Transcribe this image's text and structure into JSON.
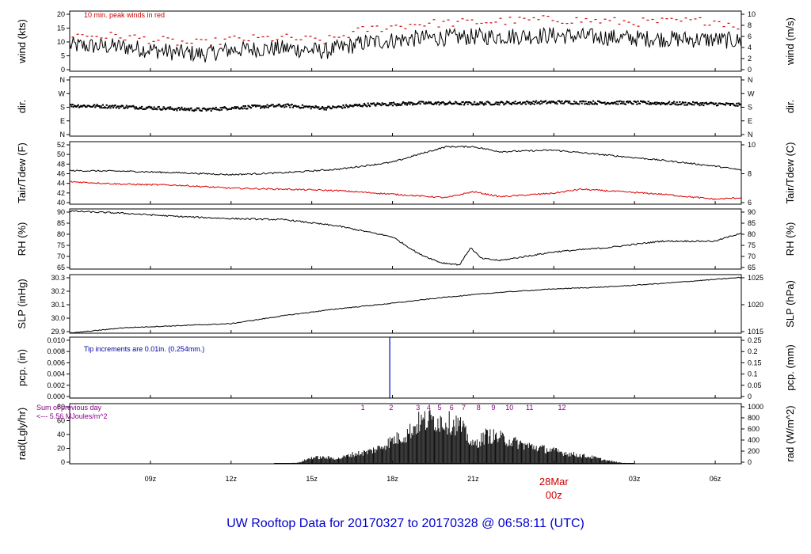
{
  "title": "UW Rooftop Data for 20170327  to  20170328 @ 06:58:11  (UTC)",
  "chart_data": {
    "type": "line",
    "time_axis": {
      "range_hours": [
        6.0,
        30.97
      ],
      "ticks": [
        {
          "hour": 9,
          "label": "09z"
        },
        {
          "hour": 12,
          "label": "12z"
        },
        {
          "hour": 15,
          "label": "15z"
        },
        {
          "hour": 18,
          "label": "18z"
        },
        {
          "hour": 21,
          "label": "21z"
        },
        {
          "hour": 24,
          "label": ""
        },
        {
          "hour": 27,
          "label": "03z"
        },
        {
          "hour": 30,
          "label": "06z"
        }
      ],
      "date_marker": {
        "hour": 24,
        "date": "28Mar",
        "time": "00z"
      }
    },
    "panels": [
      {
        "id": "wind",
        "left_label": "wind (kts)",
        "right_label": "wind (m/s)",
        "ylim": [
          0,
          21
        ],
        "left_ticks": [
          "0",
          "5",
          "10",
          "15",
          "20"
        ],
        "right_ticks": [
          "0",
          "2",
          "4",
          "6",
          "8",
          "10"
        ],
        "annotation": "10 min. peak winds in red",
        "series": [
          {
            "kind": "mean",
            "x": [
              6,
              8,
              10,
              11,
              12,
              14,
              15.5,
              17,
              19,
              21,
              24,
              27,
              30,
              31
            ],
            "y": [
              9,
              8.5,
              6.5,
              6,
              7.5,
              8,
              7,
              10,
              11.5,
              12,
              12.5,
              11.5,
              11,
              10.5
            ]
          },
          {
            "kind": "peak",
            "x": [
              6,
              8,
              10,
              11,
              12,
              14,
              15.5,
              17,
              19,
              21,
              24,
              27,
              30,
              31
            ],
            "y": [
              12,
              11.5,
              9.5,
              9,
              10.5,
              11,
              10,
              14,
              16,
              16.5,
              17.5,
              16.5,
              17,
              15
            ]
          }
        ]
      },
      {
        "id": "dir",
        "left_label": "dir.",
        "right_label": "dir.",
        "ylim": [
          0,
          360
        ],
        "left_ticks": [
          "N",
          "E",
          "S",
          "W",
          "N"
        ],
        "right_ticks": [
          "N",
          "E",
          "S",
          "W",
          "N"
        ],
        "series": [
          {
            "kind": "direction",
            "x": [
              6,
              8,
              10,
              11,
              12,
              14,
              15.5,
              17,
              19,
              21,
              24,
              27,
              30,
              31
            ],
            "y": [
              185,
              178,
              165,
              160,
              172,
              185,
              170,
              190,
              200,
              198,
              205,
              202,
              195,
              188
            ]
          }
        ]
      },
      {
        "id": "temp",
        "left_label": "Tair/Tdew (F)",
        "right_label": "Tair/Tdew (C)",
        "ylim": [
          40,
          52.5
        ],
        "left_ticks": [
          "40",
          "42",
          "44",
          "46",
          "48",
          "50",
          "52"
        ],
        "right_ticks": [
          "6",
          "8",
          "10"
        ],
        "series": [
          {
            "name": "Tair",
            "x": [
              6,
              8,
              10,
              12,
              14,
              16,
              18,
              19,
              20,
              21,
              22,
              24,
              26,
              28,
              30,
              31
            ],
            "y": [
              46.7,
              46.6,
              46.3,
              45.9,
              46.3,
              47,
              48.4,
              50,
              51.5,
              51.5,
              50.5,
              50.8,
              49.8,
              48.8,
              47.6,
              46.8
            ]
          },
          {
            "name": "Tdew",
            "x": [
              6,
              8,
              10,
              12,
              14,
              16,
              18,
              20,
              21,
              22,
              24,
              25,
              28,
              30,
              31
            ],
            "y": [
              44.5,
              44,
              43.8,
              43.2,
              43,
              42.7,
              42,
              41.3,
              42.5,
              41.5,
              42.2,
              43,
              42,
              41,
              41.3
            ]
          }
        ]
      },
      {
        "id": "rh",
        "left_label": "RH (%)",
        "right_label": "RH (%)",
        "ylim": [
          65,
          93
        ],
        "left_ticks": [
          "65",
          "70",
          "75",
          "80",
          "85",
          "90"
        ],
        "right_ticks": [
          "65",
          "70",
          "75",
          "80",
          "85",
          "90"
        ],
        "series": [
          {
            "name": "RH",
            "x": [
              6,
              8,
              10,
              12,
              14,
              16,
              18,
              19,
              19.8,
              20.5,
              20.9,
              21.3,
              22,
              24,
              26,
              28,
              30,
              31
            ],
            "y": [
              92,
              91,
              89.5,
              88.5,
              88,
              85,
              80,
              72,
              68,
              67,
              75,
              70,
              69,
              73,
              75,
              78,
              78,
              82
            ]
          }
        ]
      },
      {
        "id": "slp",
        "left_label": "SLP (inHg)",
        "right_label": "SLP (hPa)",
        "ylim": [
          29.9,
          30.33
        ],
        "left_ticks": [
          "29.9",
          "30.0",
          "30.1",
          "30.2",
          "30.3"
        ],
        "right_ticks": [
          "1015",
          "1020",
          "1025"
        ],
        "series": [
          {
            "name": "SLP",
            "x": [
              6,
              8,
              10,
              12,
              14,
              16,
              18,
              20,
              22,
              24,
              26,
              28,
              30,
              31
            ],
            "y": [
              29.9,
              29.94,
              29.955,
              29.97,
              30.03,
              30.08,
              30.12,
              30.165,
              30.2,
              30.225,
              30.24,
              30.265,
              30.295,
              30.31
            ]
          }
        ]
      },
      {
        "id": "pcp",
        "left_label": "pcp. (in)",
        "right_label": "pcp. (mm)",
        "ylim": [
          0,
          0.01
        ],
        "left_ticks": [
          "0.000",
          "0.002",
          "0.004",
          "0.006",
          "0.008",
          "0.010"
        ],
        "right_ticks": [
          "0",
          "0.05",
          "0.1",
          "0.15",
          "0.2",
          "0.25"
        ],
        "annotation": "Tip increments are 0.01in. (0.254mm.)",
        "series": [
          {
            "name": "pcp",
            "x": [
              6,
              17.9,
              17.9,
              31
            ],
            "y": [
              0,
              0,
              0.01,
              0.01
            ]
          }
        ]
      },
      {
        "id": "rad",
        "left_label": "rad(Lgly/hr)",
        "right_label": "rad (W/m^2)",
        "ylim": [
          0,
          90
        ],
        "left_ticks": [
          "0",
          "20",
          "40",
          "60",
          "80"
        ],
        "right_ticks": [
          "0",
          "200",
          "400",
          "600",
          "800",
          "1000"
        ],
        "annotation": [
          "Sum of previous day",
          "<--- 5.56 MJoules/m^2"
        ],
        "hour_markers": [
          {
            "hour": 16.9,
            "label": "1"
          },
          {
            "hour": 17.95,
            "label": "2"
          },
          {
            "hour": 18.95,
            "label": "3"
          },
          {
            "hour": 19.35,
            "label": "4"
          },
          {
            "hour": 19.75,
            "label": "5"
          },
          {
            "hour": 20.2,
            "label": "6"
          },
          {
            "hour": 20.65,
            "label": "7"
          },
          {
            "hour": 21.2,
            "label": "8"
          },
          {
            "hour": 21.75,
            "label": "9"
          },
          {
            "hour": 22.35,
            "label": "10"
          },
          {
            "hour": 23.1,
            "label": "11"
          },
          {
            "hour": 24.3,
            "label": "12"
          }
        ],
        "series": [
          {
            "name": "rad",
            "x": [
              13.6,
              14.5,
              15,
              15.5,
              16,
              16.5,
              17,
              17.5,
              18,
              18.5,
              19,
              19.5,
              20,
              20.5,
              21,
              21.5,
              22,
              22.5,
              23,
              23.5,
              24,
              24.5,
              25,
              25.5,
              26,
              26.5,
              27
            ],
            "y": [
              0,
              2,
              12,
              12,
              10,
              18,
              22,
              30,
              45,
              55,
              80,
              85,
              80,
              75,
              35,
              55,
              50,
              42,
              35,
              30,
              25,
              20,
              16,
              12,
              6,
              2,
              0
            ]
          }
        ]
      }
    ]
  }
}
